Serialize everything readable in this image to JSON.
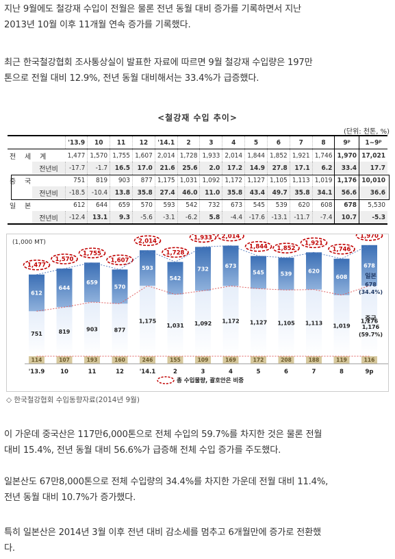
{
  "paragraphs": {
    "p1_line1": "지난 9월에도 철강재 수입이 전월은 물론 전년 동월 대비 증가를 기록하면서 지난",
    "p1_line2": "2013년 10월 이후 11개월 연속 증가를 기록했다.",
    "p2_line1": "최근 한국철강협회 조사통상실이 발표한 자료에 따르면 9월 철강재 수입량은 197만",
    "p2_line2": "톤으로 전월 대비 12.9%, 전년 동월 대비해서는 33.4%가 급증했다.",
    "p3_line1": "이 가운데 중국산은 117만6,000톤으로 전체 수입의 59.7%를 차지한 것은 물론 전월",
    "p3_line2": "대비 15.4%, 전년 동월 대비 56.6%가 급증해 전체 수입 증가를 주도했다.",
    "p4_line1": "일본산도 67만8,000톤으로 전체 수입량의 34.4%를 차지한 가운데 전월 대비 11.4%,",
    "p4_line2": "전년 동월 대비 10.7%가 증가했다.",
    "p5_line1": "특히 일본산은 2014년 3월 이후 전년 대비 감소세를 멈추고 6개월만에 증가로 전환했",
    "p5_line2": "다."
  },
  "table": {
    "title": "<철강재 수입 추이>",
    "unit": "(단위: 천톤, %)",
    "columns": [
      "'13.9",
      "10",
      "11",
      "12",
      "'14.1",
      "2",
      "3",
      "4",
      "5",
      "6",
      "7",
      "8",
      "9ᵖ",
      "1~9ᵖ"
    ],
    "rows": [
      {
        "label": "전 세 계",
        "cells": [
          "1,477",
          "1,570",
          "1,755",
          "1,607",
          "2,014",
          "1,728",
          "1,933",
          "2,014",
          "1,844",
          "1,852",
          "1,921",
          "1,746",
          "1,970",
          "17,021"
        ],
        "bold": [
          12,
          13
        ]
      },
      {
        "label": "전년비",
        "cells": [
          "-17.7",
          "-1.7",
          "16.5",
          "17.0",
          "21.6",
          "25.6",
          "2.0",
          "17.2",
          "14.9",
          "27.8",
          "17.1",
          "6.2",
          "33.4",
          "17.7"
        ],
        "bold": [
          2,
          3,
          4,
          5,
          6,
          7,
          8,
          9,
          10,
          11,
          12,
          13
        ]
      },
      {
        "label": "중 국",
        "cells": [
          "751",
          "819",
          "903",
          "877",
          "1,175",
          "1,031",
          "1,092",
          "1,172",
          "1,127",
          "1,105",
          "1,113",
          "1,019",
          "1,176",
          "10,010"
        ],
        "bold": [
          12,
          13
        ]
      },
      {
        "label": "전년비",
        "cells": [
          "-18.5",
          "-10.4",
          "13.8",
          "35.8",
          "27.4",
          "46.0",
          "11.0",
          "35.8",
          "43.4",
          "49.7",
          "35.8",
          "34.1",
          "56.6",
          "36.6"
        ],
        "bold": [
          2,
          3,
          4,
          5,
          6,
          7,
          8,
          9,
          10,
          11,
          12,
          13
        ]
      },
      {
        "label": "일 본",
        "cells": [
          "612",
          "644",
          "659",
          "570",
          "593",
          "542",
          "732",
          "673",
          "545",
          "539",
          "620",
          "608",
          "678",
          "5,530"
        ],
        "bold": [
          12
        ]
      },
      {
        "label": "전년비",
        "cells": [
          "-12.4",
          "13.1",
          "9.3",
          "-5.6",
          "-3.1",
          "-6.2",
          "5.8",
          "-4.4",
          "-17.6",
          "-13.1",
          "-11.7",
          "-7.4",
          "10.7",
          "-5.3"
        ],
        "bold": [
          1,
          2,
          6,
          12,
          13
        ]
      }
    ]
  },
  "chart_data": {
    "type": "bar",
    "stacked": true,
    "ylabel": "(1,000 MT)",
    "categories": [
      "'13.9",
      "10",
      "11",
      "12",
      "'14.1",
      "2",
      "3",
      "4",
      "5",
      "6",
      "7",
      "8",
      "9p"
    ],
    "series": [
      {
        "name": "",
        "values": [
          114,
          107,
          193,
          160,
          246,
          155,
          109,
          169,
          172,
          208,
          188,
          119,
          116
        ],
        "color": "#c9b98a"
      },
      {
        "name": "중국",
        "values": [
          751,
          819,
          903,
          877,
          1175,
          1031,
          1092,
          1172,
          1127,
          1105,
          1113,
          1019,
          1176
        ],
        "color": "#c5d9f1"
      },
      {
        "name": "일본",
        "values": [
          612,
          644,
          659,
          570,
          593,
          542,
          732,
          673,
          545,
          539,
          620,
          608,
          678
        ],
        "color": "#4f81bd"
      }
    ],
    "totals": [
      1477,
      1570,
      1755,
      1607,
      2014,
      1728,
      1933,
      2014,
      1844,
      1852,
      1921,
      1746,
      1970
    ],
    "total_labels": [
      "1,477",
      "1,570",
      "1,755",
      "1,607",
      "2,014",
      "1,728",
      "1,933",
      "2,014",
      "1,844",
      "1,852",
      "1,921",
      "1,746",
      "1,970"
    ],
    "china_labels": [
      "751",
      "819",
      "903",
      "877",
      "1,175",
      "1,031",
      "1,092",
      "1,172",
      "1,127",
      "1,105",
      "1,113",
      "1,019",
      "1,176"
    ],
    "japan_labels": [
      "612",
      "644",
      "659",
      "570",
      "593",
      "542",
      "732",
      "673",
      "545",
      "539",
      "620",
      "608",
      "678"
    ],
    "other_labels": [
      "114",
      "107",
      "193",
      "160",
      "246",
      "155",
      "109",
      "169",
      "172",
      "208",
      "188",
      "119",
      "116"
    ],
    "annotation_japan": [
      "일본",
      "678",
      "(34.4%)"
    ],
    "annotation_china": [
      "중국",
      "1,176",
      "(59.7%)"
    ],
    "legend_text": "총 수입물량, 괄호안은 비중",
    "colors": {
      "total_ellipse": "#c00000",
      "top_gradient": "#4f81bd",
      "china": "#c5d9f1",
      "other": "#c9b98a",
      "line": "#e06060"
    }
  },
  "caption": "◇ 한국철강협회 수입동향자료(2014년 9월)"
}
